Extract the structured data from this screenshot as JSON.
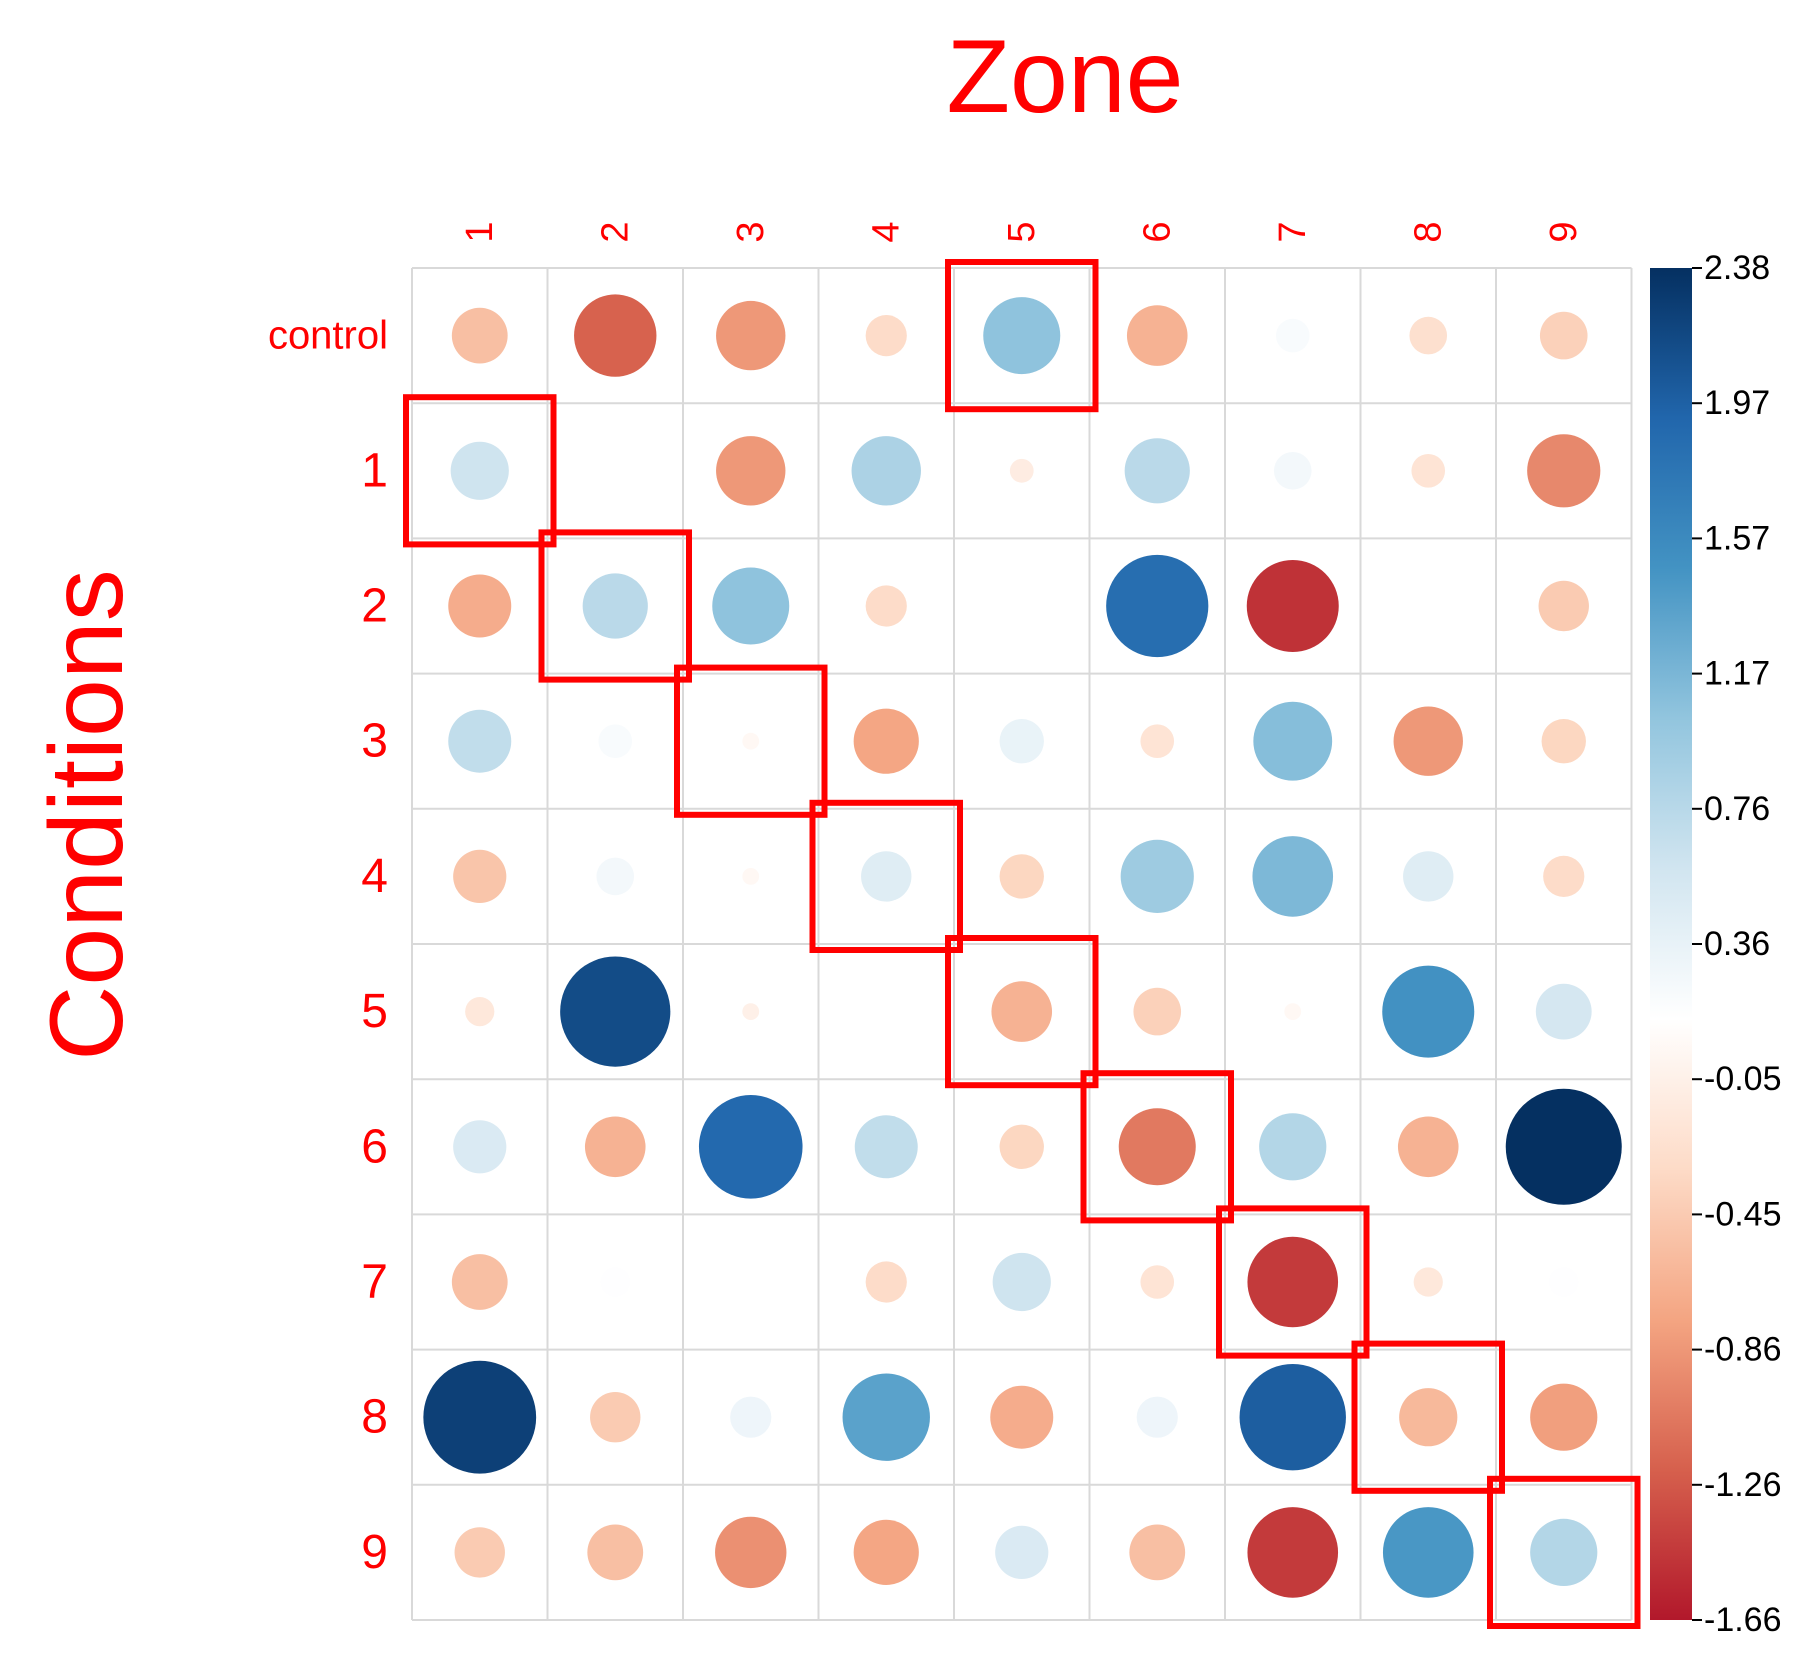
{
  "chart_data": {
    "type": "heatmap",
    "title": "Zone",
    "xlabel": "Zone",
    "ylabel": "Conditions",
    "columns": [
      "1",
      "2",
      "3",
      "4",
      "5",
      "6",
      "7",
      "8",
      "9"
    ],
    "rows": [
      "control",
      "1",
      "2",
      "3",
      "4",
      "5",
      "6",
      "7",
      "8",
      "9"
    ],
    "values": [
      [
        -0.55,
        -1.2,
        -0.85,
        -0.3,
        1.05,
        -0.65,
        0.2,
        -0.25,
        -0.4
      ],
      [
        0.6,
        0.0,
        -0.85,
        0.85,
        -0.1,
        0.75,
        0.25,
        -0.2,
        -0.95
      ],
      [
        -0.7,
        0.75,
        1.05,
        -0.3,
        0.0,
        1.85,
        -1.5,
        0.0,
        -0.45
      ],
      [
        0.7,
        0.2,
        0.05,
        -0.75,
        0.35,
        -0.2,
        1.1,
        -0.85,
        -0.35
      ],
      [
        -0.5,
        0.25,
        0.05,
        0.45,
        -0.35,
        0.95,
        1.15,
        0.45,
        -0.3
      ],
      [
        -0.15,
        2.15,
        -0.05,
        0.0,
        -0.65,
        -0.4,
        0.05,
        1.5,
        0.55
      ],
      [
        0.5,
        -0.65,
        1.9,
        0.7,
        -0.35,
        -1.05,
        0.8,
        -0.65,
        2.38
      ],
      [
        -0.55,
        0.15,
        0.0,
        -0.3,
        0.6,
        -0.2,
        -1.45,
        -0.15,
        0.15
      ],
      [
        2.25,
        -0.45,
        0.3,
        1.35,
        -0.7,
        0.3,
        2.0,
        -0.6,
        -0.8
      ],
      [
        -0.45,
        -0.55,
        -0.9,
        -0.75,
        0.5,
        -0.55,
        -1.45,
        1.45,
        0.8
      ]
    ],
    "highlighted_cells": [
      [
        0,
        4
      ],
      [
        1,
        0
      ],
      [
        2,
        1
      ],
      [
        3,
        2
      ],
      [
        4,
        3
      ],
      [
        5,
        4
      ],
      [
        6,
        5
      ],
      [
        7,
        6
      ],
      [
        8,
        7
      ],
      [
        9,
        8
      ]
    ],
    "colorbar": {
      "min": -1.66,
      "max": 2.38,
      "tick_labels": [
        "2.38",
        "1.97",
        "1.57",
        "1.17",
        "0.76",
        "0.36",
        "-0.05",
        "-0.45",
        "-0.86",
        "-1.26",
        "-1.66"
      ],
      "stops": [
        "#b2182b",
        "#d6604d",
        "#f4a582",
        "#fddbc7",
        "#ffffff",
        "#d1e5f0",
        "#92c5de",
        "#4393c3",
        "#2166ac",
        "#053061"
      ]
    },
    "legend_position": "right",
    "grid": true
  },
  "colors": {
    "label": "#ff0000",
    "highlight": "#ff0000",
    "grid": "#d9d9d9"
  }
}
